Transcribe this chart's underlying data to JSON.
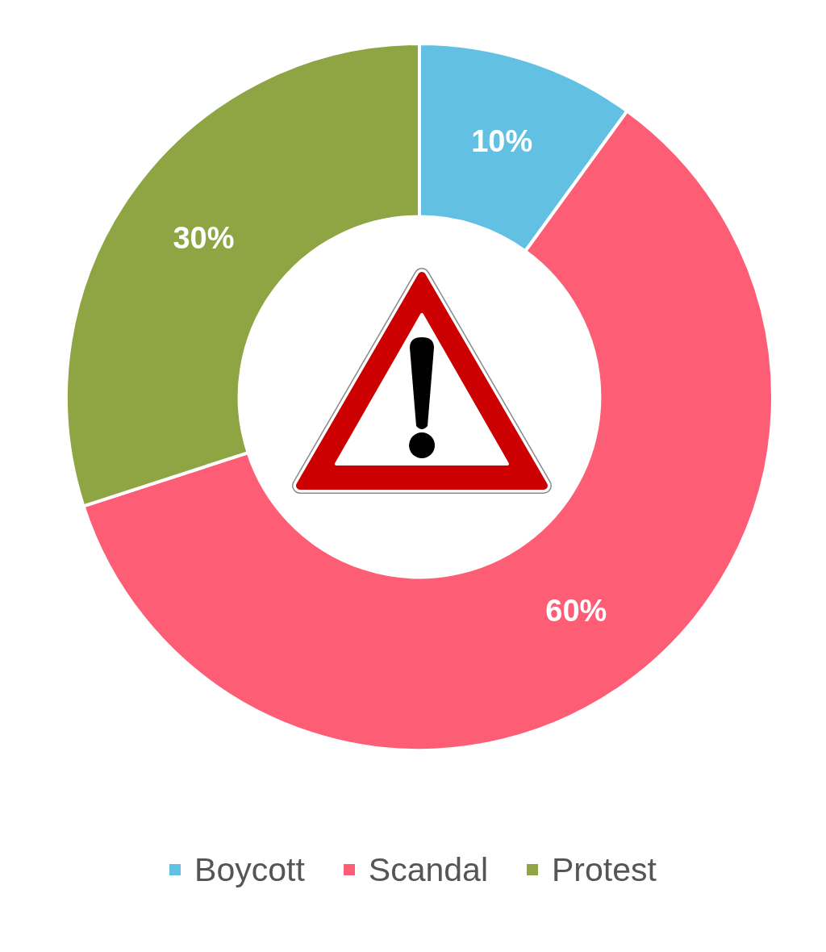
{
  "chart_data": {
    "type": "donut",
    "categories": [
      "Boycott",
      "Scandal",
      "Protest"
    ],
    "values": [
      10,
      60,
      30
    ],
    "colors": [
      "#62c0e3",
      "#fd5e75",
      "#8fa544"
    ],
    "value_labels": [
      "10%",
      "60%",
      "30%"
    ],
    "legend": "bottom"
  }
}
